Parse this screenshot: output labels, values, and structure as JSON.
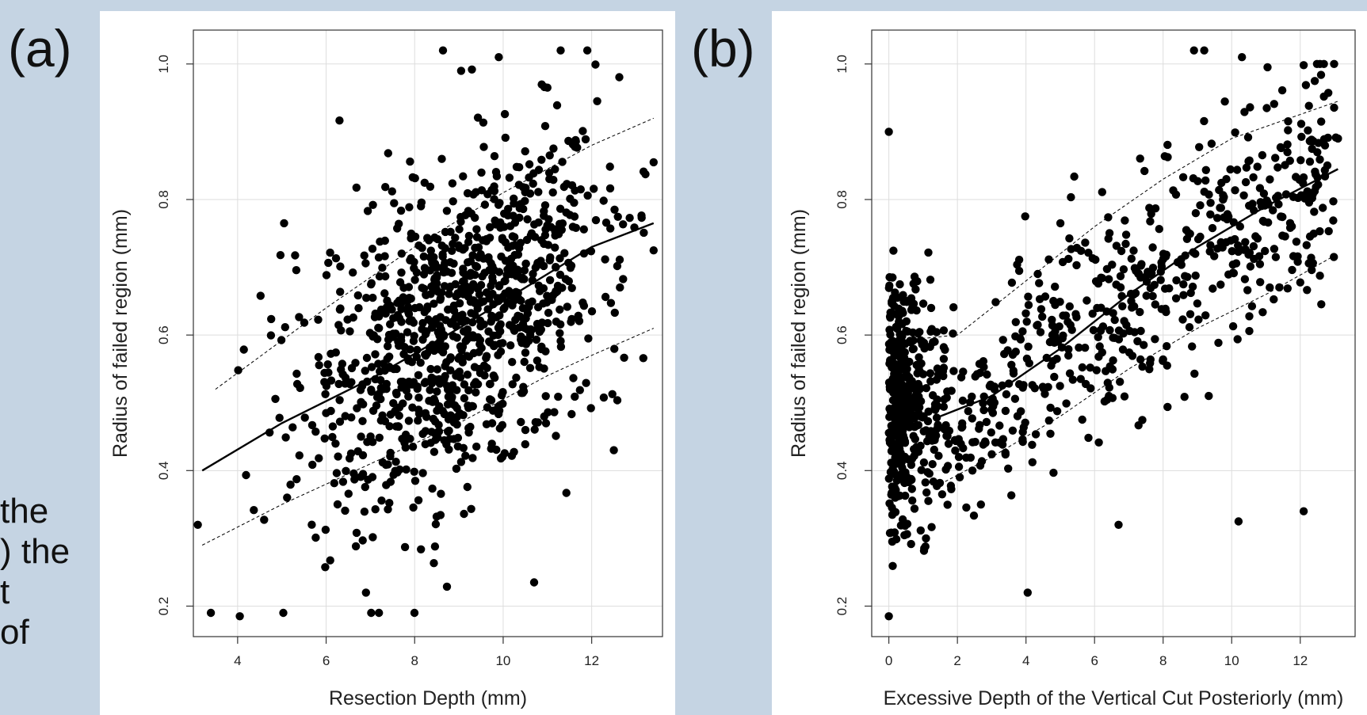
{
  "labels": {
    "a": "(a)",
    "b": "(b)"
  },
  "side_text": [
    "the",
    ") the",
    "t",
    "of"
  ],
  "chart_data": [
    {
      "type": "scatter",
      "panel": "a",
      "xlabel": "Resection Depth (mm)",
      "ylabel": "Radius of failed region (mm)",
      "xlim": [
        3.0,
        13.6
      ],
      "ylim": [
        0.155,
        1.05
      ],
      "xticks": [
        4,
        6,
        8,
        10,
        12
      ],
      "yticks": [
        0.2,
        0.4,
        0.6,
        0.8,
        1.0
      ],
      "ytick_labels": [
        "0.2",
        "0.4",
        "0.6",
        "0.8",
        "1.0"
      ],
      "grid": true,
      "points_summary": "approx. 1100 points; x mostly 3.1–13.5 mm centred near 9 mm; y 0.19–1.02 mm",
      "notable_points": [
        [
          4.05,
          0.185
        ],
        [
          3.1,
          0.32
        ],
        [
          6.9,
          0.22
        ],
        [
          10.7,
          0.235
        ],
        [
          9.05,
          0.99
        ],
        [
          9.9,
          1.01
        ],
        [
          11.3,
          1.02
        ],
        [
          11.9,
          1.02
        ],
        [
          11.0,
          0.965
        ],
        [
          13.4,
          0.855
        ],
        [
          13.4,
          0.725
        ],
        [
          12.5,
          0.43
        ],
        [
          5.05,
          0.765
        ]
      ],
      "fit_line": {
        "x": [
          3.2,
          5,
          7,
          9,
          11,
          12,
          13.4
        ],
        "y": [
          0.4,
          0.47,
          0.535,
          0.61,
          0.69,
          0.73,
          0.765
        ]
      },
      "upper_band": {
        "x": [
          3.5,
          6,
          8,
          10,
          12,
          13.4
        ],
        "y": [
          0.52,
          0.64,
          0.73,
          0.81,
          0.88,
          0.92
        ]
      },
      "lower_band": {
        "x": [
          3.2,
          5,
          7,
          9,
          11,
          12,
          13.4
        ],
        "y": [
          0.29,
          0.35,
          0.41,
          0.47,
          0.54,
          0.57,
          0.61
        ]
      }
    },
    {
      "type": "scatter",
      "panel": "b",
      "xlabel": "Excessive Depth of the Vertical Cut Posteriorly (mm)",
      "ylabel": "Radius of failed region (mm)",
      "xlim": [
        -0.5,
        13.6
      ],
      "ylim": [
        0.155,
        1.05
      ],
      "xticks": [
        0,
        2,
        4,
        6,
        8,
        10,
        12
      ],
      "yticks": [
        0.2,
        0.4,
        0.6,
        0.8,
        1.0
      ],
      "ytick_labels": [
        "0.2",
        "0.4",
        "0.6",
        "0.8",
        "1.0"
      ],
      "grid": true,
      "points_summary": "approx. 1000 points; dense cluster at x 0–1.5 mm (y 0.24–0.78), rising trend to x≈13 mm (y up to 1.02)",
      "notable_points": [
        [
          0,
          0.185
        ],
        [
          0,
          0.9
        ],
        [
          4.05,
          0.22
        ],
        [
          8.9,
          1.02
        ],
        [
          9.2,
          1.02
        ],
        [
          10.3,
          1.01
        ],
        [
          12.1,
          0.34
        ],
        [
          10.2,
          0.325
        ],
        [
          13.1,
          0.89
        ],
        [
          6.7,
          0.32
        ]
      ],
      "fit_line": {
        "x": [
          1.5,
          3,
          5,
          7,
          9,
          11,
          13.1
        ],
        "y": [
          0.48,
          0.51,
          0.58,
          0.66,
          0.73,
          0.79,
          0.845
        ]
      },
      "upper_band": {
        "x": [
          0,
          2,
          4,
          6,
          8,
          10,
          13.1
        ],
        "y": [
          0.59,
          0.6,
          0.68,
          0.76,
          0.83,
          0.89,
          0.945
        ]
      },
      "lower_band": {
        "x": [
          1.5,
          3,
          5,
          7,
          9,
          11,
          13.1
        ],
        "y": [
          0.38,
          0.42,
          0.48,
          0.55,
          0.61,
          0.66,
          0.72
        ]
      }
    }
  ]
}
